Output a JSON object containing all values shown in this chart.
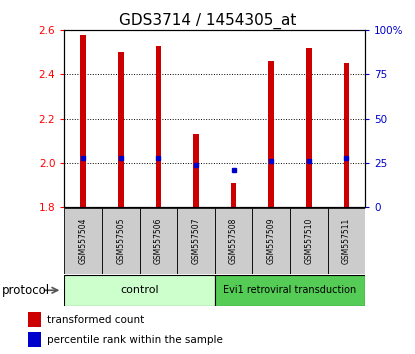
{
  "title": "GDS3714 / 1454305_at",
  "samples": [
    "GSM557504",
    "GSM557505",
    "GSM557506",
    "GSM557507",
    "GSM557508",
    "GSM557509",
    "GSM557510",
    "GSM557511"
  ],
  "transformed_count": [
    2.58,
    2.5,
    2.53,
    2.13,
    1.91,
    2.46,
    2.52,
    2.45
  ],
  "baseline": 1.8,
  "percentile_vals": [
    28,
    28,
    28,
    24,
    21,
    26,
    26,
    28
  ],
  "ylim_left": [
    1.8,
    2.6
  ],
  "ylim_right": [
    0,
    100
  ],
  "yticks_left": [
    1.8,
    2.0,
    2.2,
    2.4,
    2.6
  ],
  "yticks_right": [
    0,
    25,
    50,
    75,
    100
  ],
  "bar_color": "#cc0000",
  "blue_color": "#0000cc",
  "bar_width": 0.15,
  "control_color": "#ccffcc",
  "evi1_color": "#55cc55",
  "bg_color": "#ffffff",
  "title_fontsize": 11,
  "tick_fontsize": 7.5,
  "right_axis_color": "#0000cc",
  "sample_label_fontsize": 5.5,
  "group_label_fontsize": 8,
  "legend_fontsize": 7.5
}
